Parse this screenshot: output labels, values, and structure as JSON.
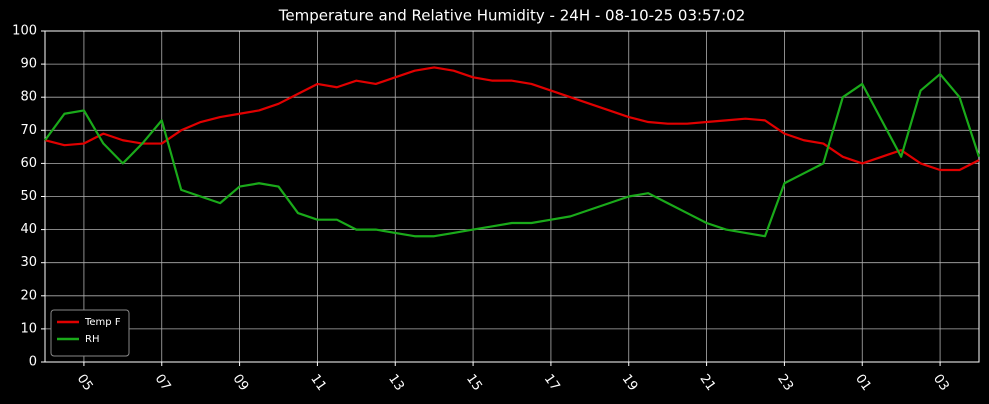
{
  "chart_data": {
    "type": "line",
    "title": "Temperature and Relative Humidity - 24H - 08-10-25 03:57:02",
    "categories": [
      null,
      null,
      "05",
      null,
      null,
      null,
      "07",
      null,
      null,
      null,
      "09",
      null,
      null,
      null,
      "11",
      null,
      null,
      null,
      "13",
      null,
      null,
      null,
      "15",
      null,
      null,
      null,
      "17",
      null,
      null,
      null,
      "19",
      null,
      null,
      null,
      "21",
      null,
      null,
      null,
      "23",
      null,
      null,
      null,
      "01",
      null,
      null,
      null,
      "03",
      null,
      null
    ],
    "series": [
      {
        "name": "Temp F",
        "color": "#e00000",
        "values": [
          67,
          65.5,
          66,
          69,
          67,
          66,
          66,
          70,
          72.5,
          74,
          75,
          76,
          78,
          81,
          84,
          83,
          85,
          84,
          86,
          88,
          89,
          88,
          86,
          85,
          85,
          84,
          82,
          80,
          78,
          76,
          74,
          72.5,
          72,
          72,
          72.5,
          73,
          73.5,
          73,
          69,
          67,
          66,
          62,
          60,
          62,
          64,
          60,
          58,
          58,
          61
        ]
      },
      {
        "name": "RH",
        "color": "#1aaa1a",
        "values": [
          67,
          75,
          76,
          66,
          60,
          66,
          73,
          52,
          50,
          48,
          53,
          54,
          53,
          45,
          43,
          43,
          40,
          40,
          39,
          38,
          38,
          39,
          40,
          41,
          42,
          42,
          43,
          44,
          46,
          48,
          50,
          51,
          48,
          45,
          42,
          40,
          39,
          38,
          54,
          57,
          60,
          80,
          84,
          73,
          62,
          82,
          87,
          80,
          62
        ]
      }
    ],
    "ylim": [
      0,
      100
    ],
    "yticks": [
      0,
      10,
      20,
      30,
      40,
      50,
      60,
      70,
      80,
      90,
      100
    ],
    "grid": true,
    "legend": "lower left"
  }
}
